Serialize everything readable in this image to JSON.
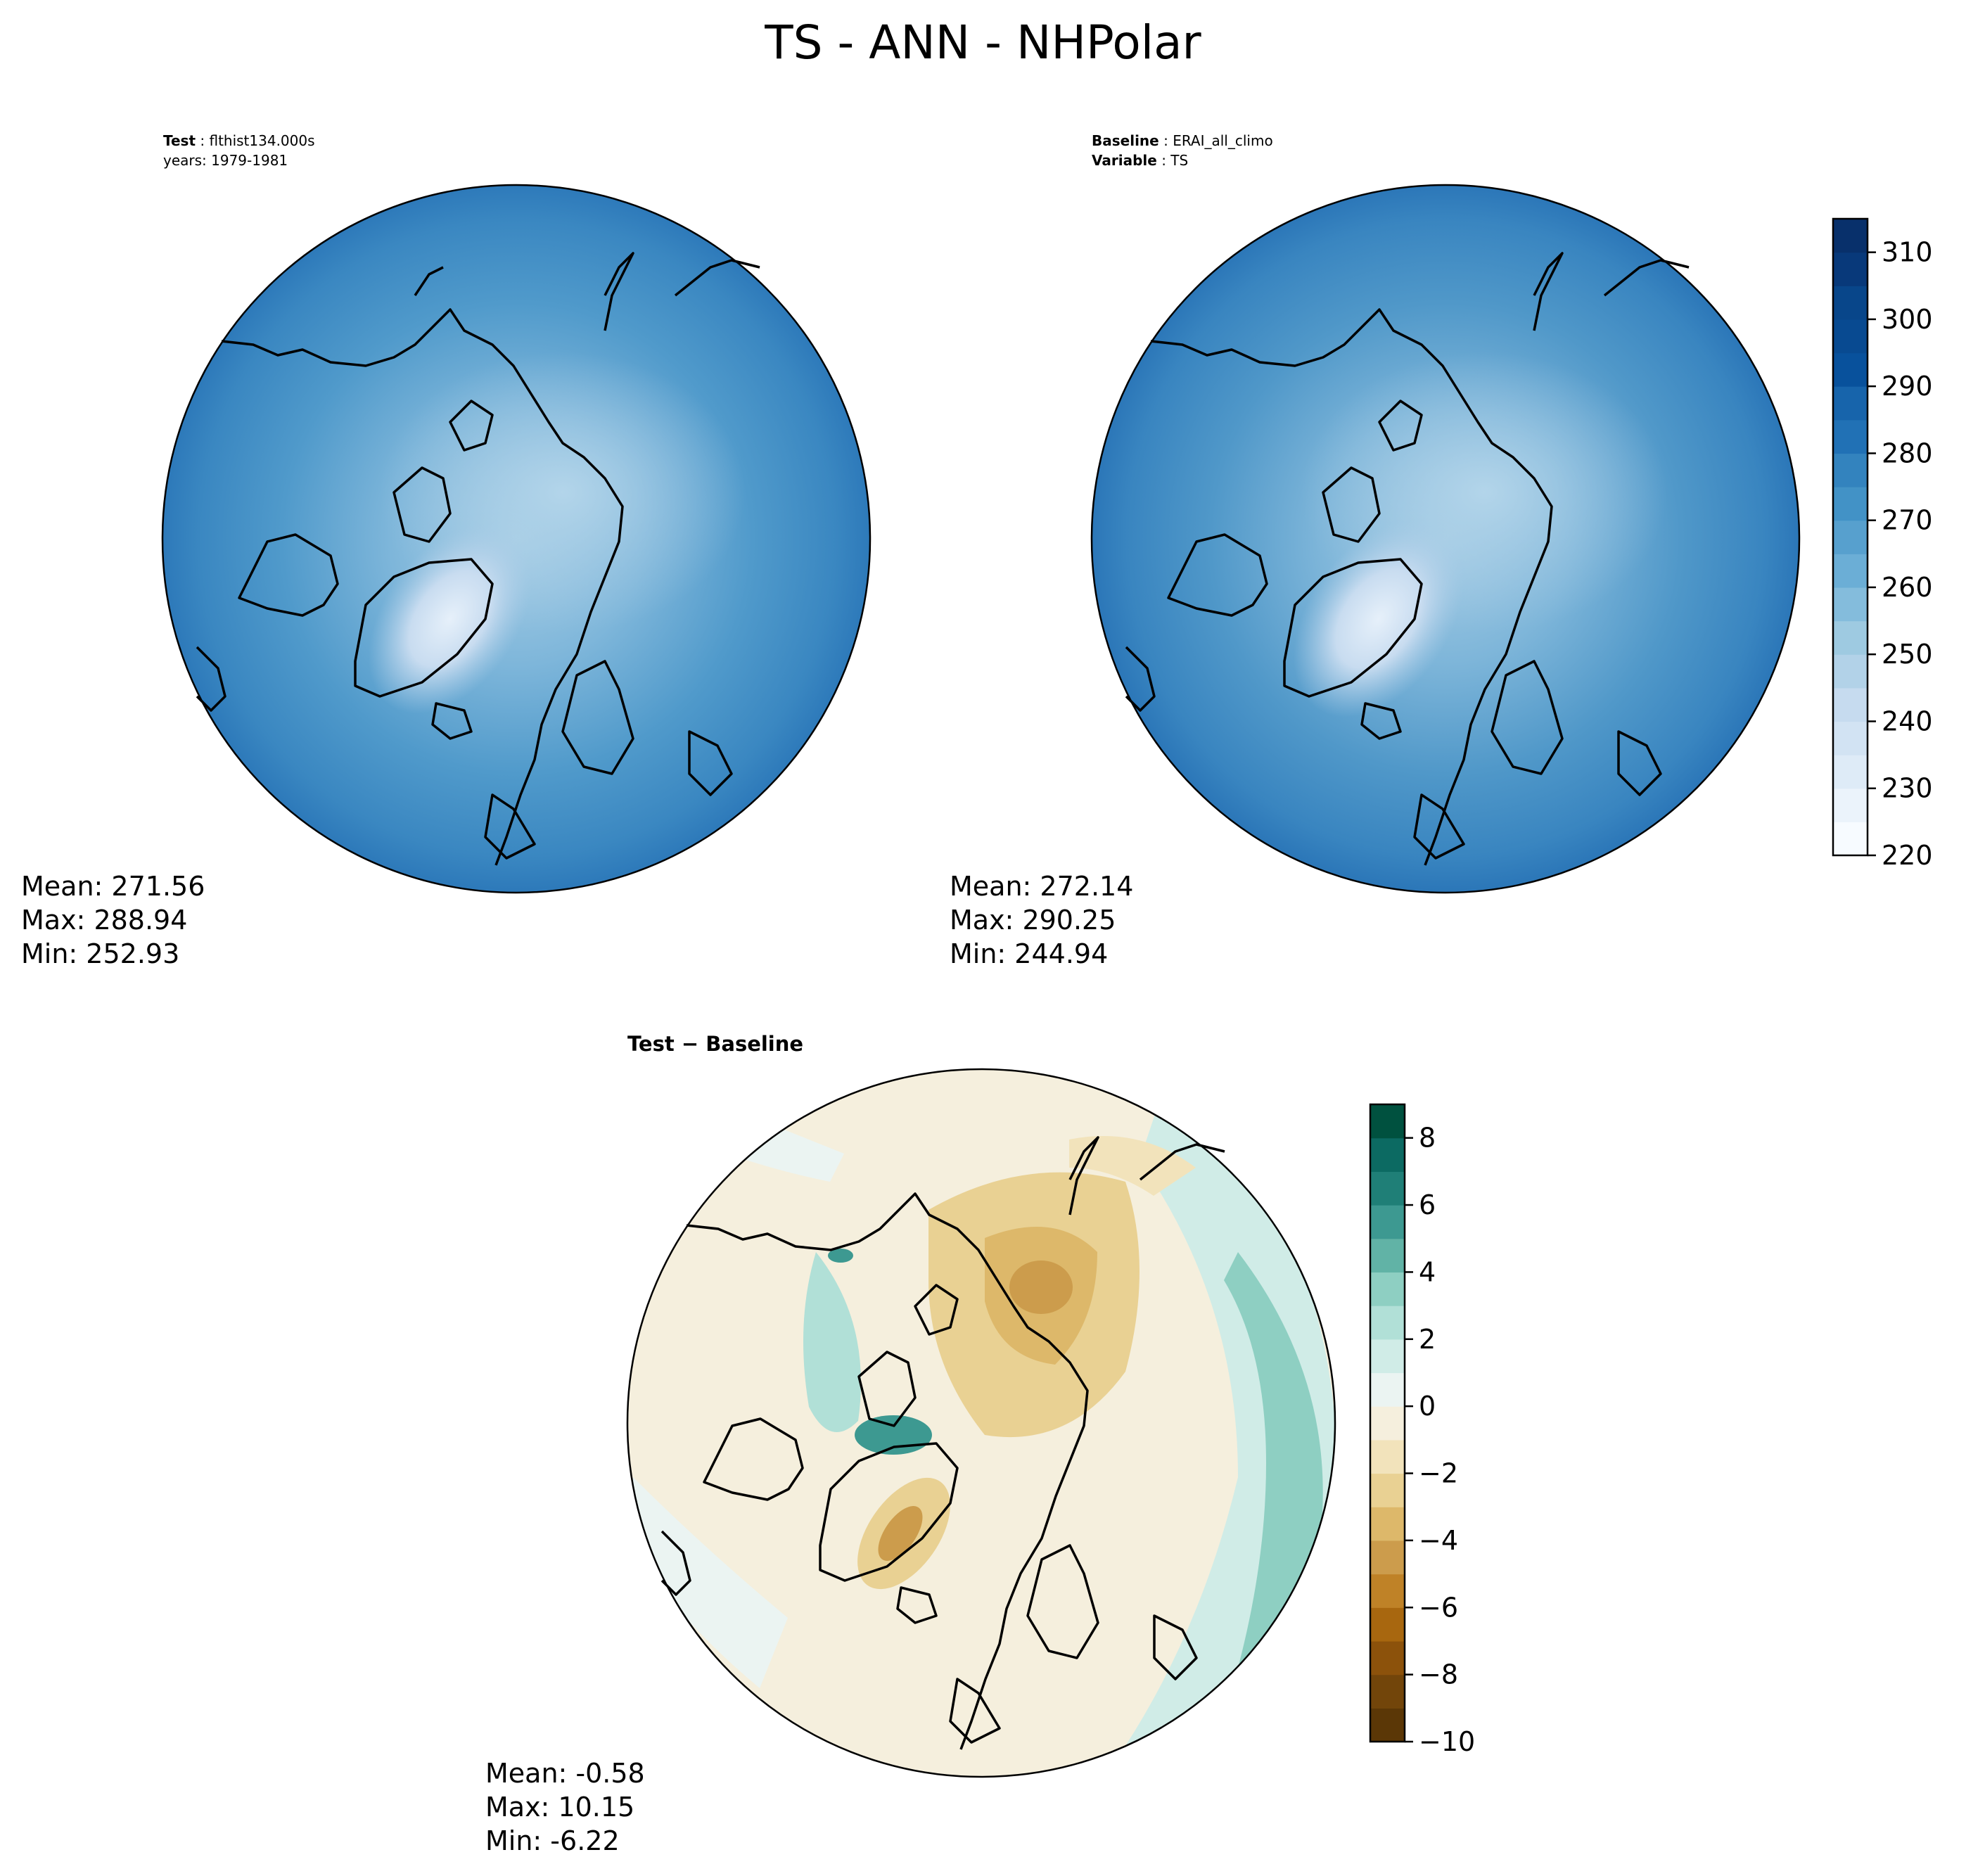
{
  "figure": {
    "title": "TS - ANN - NHPolar"
  },
  "panels": {
    "test": {
      "label1_key": "Test",
      "label1_value": "flthist134.000s",
      "label2": "years: 1979-1981",
      "mean": "Mean: 271.56",
      "max": "Max: 288.94",
      "min": "Min: 252.93"
    },
    "baseline": {
      "label1_key": "Baseline",
      "label1_value": "ERAI_all_climo",
      "label2_key": "Variable",
      "label2_value": "TS",
      "mean": "Mean: 272.14",
      "max": "Max: 290.25",
      "min": "Min: 244.94"
    },
    "diff": {
      "title_left": "Test",
      "title_op": "−",
      "title_right": "Baseline",
      "mean": "Mean: -0.58",
      "max": "Max: 10.15",
      "min": "Min: -6.22"
    }
  },
  "chart_data": [
    {
      "type": "heatmap",
      "name": "test",
      "projection": "north-polar-stereographic",
      "colormap": "Blues",
      "stats": {
        "mean": 271.56,
        "max": 288.94,
        "min": 252.93
      }
    },
    {
      "type": "heatmap",
      "name": "baseline",
      "projection": "north-polar-stereographic",
      "colormap": "Blues",
      "stats": {
        "mean": 272.14,
        "max": 290.25,
        "min": 244.94
      }
    },
    {
      "type": "heatmap",
      "name": "test-minus-baseline",
      "projection": "north-polar-stereographic",
      "colormap": "BrBG",
      "stats": {
        "mean": -0.58,
        "max": 10.15,
        "min": -6.22
      }
    }
  ],
  "colorbar_main": {
    "range": [
      220,
      315
    ],
    "levels": [
      220,
      225,
      230,
      235,
      240,
      245,
      250,
      255,
      260,
      265,
      270,
      275,
      280,
      285,
      290,
      295,
      300,
      305,
      310,
      315
    ],
    "ticks": [
      "220",
      "230",
      "240",
      "250",
      "260",
      "270",
      "280",
      "290",
      "300",
      "310"
    ],
    "tick_values": [
      220,
      230,
      240,
      250,
      260,
      270,
      280,
      290,
      300,
      310
    ],
    "colors": [
      "#f7fbff",
      "#ebf3fb",
      "#deebf7",
      "#d2e3f3",
      "#c6dbef",
      "#b2d2e8",
      "#9ecae1",
      "#84bcdc",
      "#6baed6",
      "#57a0ce",
      "#4292c6",
      "#3383be",
      "#2171b5",
      "#1764ab",
      "#08519c",
      "#084a91",
      "#08468a",
      "#08397a",
      "#08306b"
    ]
  },
  "colorbar_diff": {
    "range": [
      -10,
      9
    ],
    "levels": [
      -10,
      -9,
      -8,
      -7,
      -6,
      -5,
      -4,
      -3,
      -2,
      -1,
      0,
      1,
      2,
      3,
      4,
      5,
      6,
      7,
      8,
      9
    ],
    "ticks": [
      "−10",
      "−8",
      "−6",
      "−4",
      "−2",
      "0",
      "2",
      "4",
      "6",
      "8"
    ],
    "tick_values": [
      -10,
      -8,
      -6,
      -4,
      -2,
      0,
      2,
      4,
      6,
      8
    ],
    "colors": [
      "#5b3706",
      "#72450a",
      "#8c520b",
      "#a8670f",
      "#bf8227",
      "#cc9c4c",
      "#ddb86a",
      "#e9d193",
      "#f2e3bb",
      "#f5efdd",
      "#ebf4f2",
      "#d0ece7",
      "#b1e0d7",
      "#8ecfc2",
      "#61b3a6",
      "#3d9991",
      "#1f7f77",
      "#0c6a62",
      "#00513f"
    ]
  }
}
